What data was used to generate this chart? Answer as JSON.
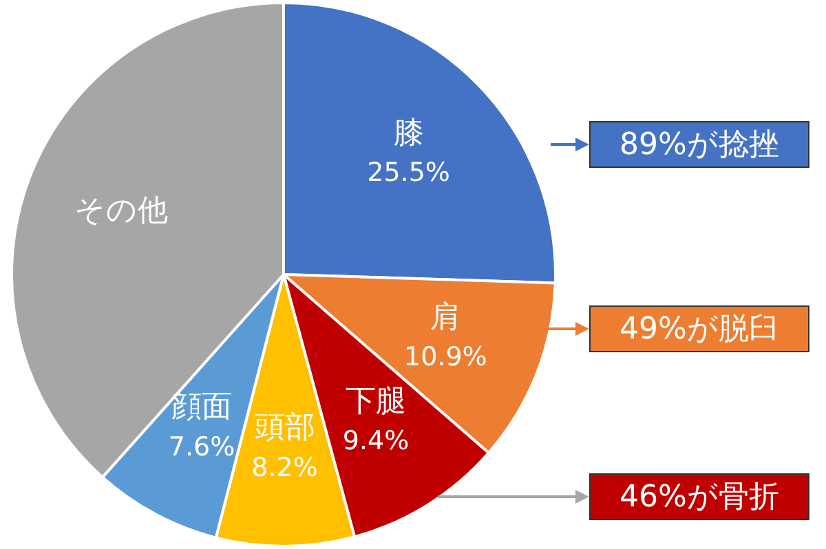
{
  "chart_data": {
    "type": "pie",
    "categories": [
      "膝",
      "肩",
      "下腿",
      "頭部",
      "顔面",
      "その他"
    ],
    "values": [
      25.5,
      10.9,
      9.4,
      8.2,
      7.6,
      38.4
    ],
    "colors": [
      "#4472c4",
      "#ed7d31",
      "#c00000",
      "#ffc000",
      "#5b9bd5",
      "#a6a6a6"
    ],
    "value_labels": [
      "25.5%",
      "10.9%",
      "9.4%",
      "8.2%",
      "7.6%",
      null
    ],
    "annotations": [
      "89%が捻挫",
      "49%が脱臼",
      "46%が骨折"
    ],
    "legend": false
  }
}
